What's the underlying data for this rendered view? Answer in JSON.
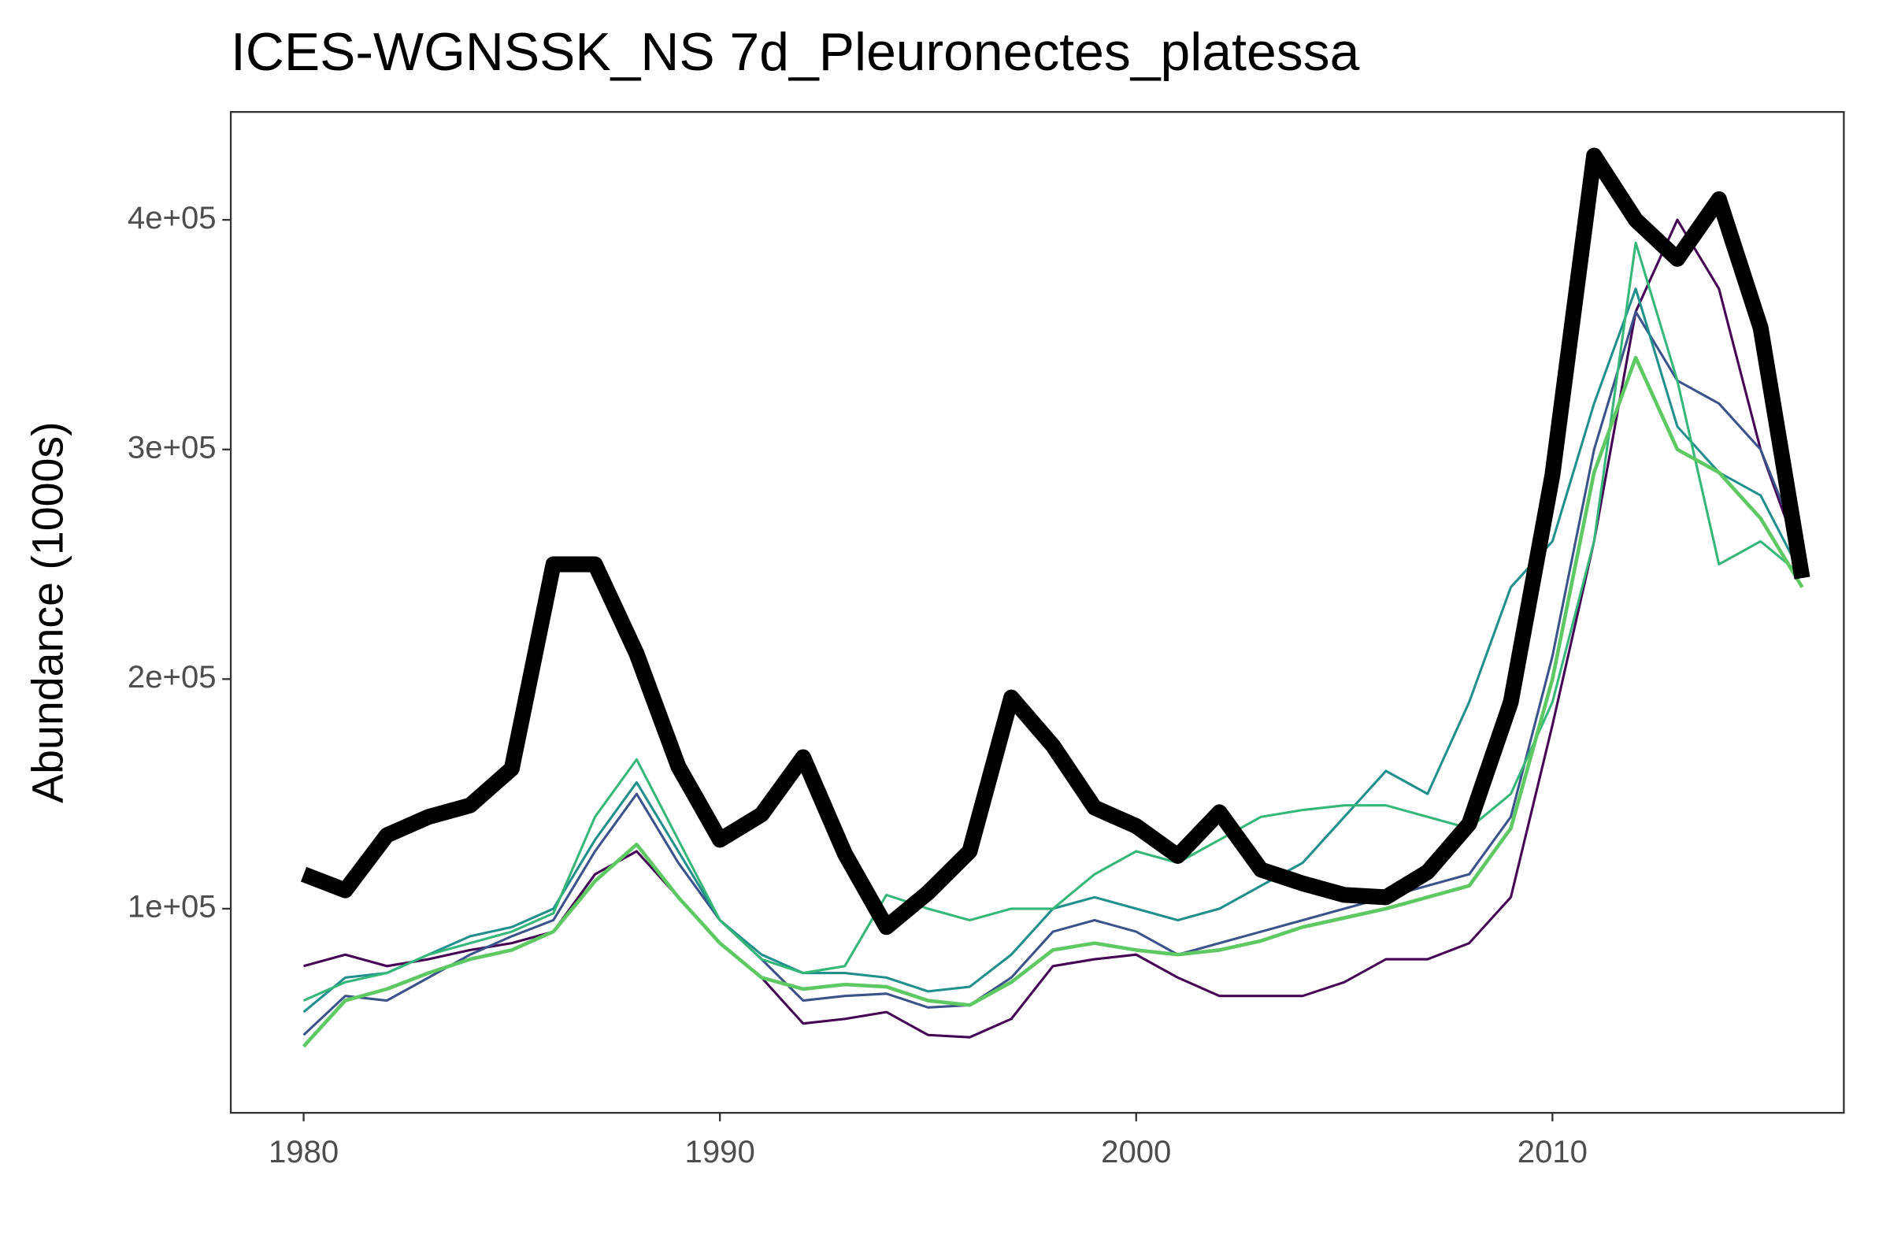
{
  "chart_data": {
    "type": "line",
    "title": "ICES-WGNSSK_NS 7d_Pleuronectes_platessa",
    "y_label": "Abundance (1000s)",
    "x": [
      1980,
      1981,
      1982,
      1983,
      1984,
      1985,
      1986,
      1987,
      1988,
      1989,
      1990,
      1991,
      1992,
      1993,
      1994,
      1995,
      1996,
      1997,
      1998,
      1999,
      2000,
      2001,
      2002,
      2003,
      2004,
      2005,
      2006,
      2007,
      2008,
      2009,
      2010,
      2011,
      2012,
      2013,
      2014,
      2015,
      2016
    ],
    "xlim": [
      1978.25,
      2017
    ],
    "xticks": [
      1980,
      1990,
      2000,
      2010
    ],
    "ylim": [
      11100,
      447000
    ],
    "yticks": [
      {
        "value": 100000,
        "label": "1e+05"
      },
      {
        "value": 200000,
        "label": "2e+05"
      },
      {
        "value": 300000,
        "label": "3e+05"
      },
      {
        "value": 400000,
        "label": "4e+05"
      }
    ],
    "grid": false,
    "series": [
      {
        "color": "#440154",
        "width": 2,
        "values": [
          75000,
          80000,
          75000,
          78000,
          82000,
          85000,
          90000,
          115000,
          125000,
          105000,
          85000,
          70000,
          50000,
          52000,
          55000,
          45000,
          44000,
          52000,
          75000,
          78000,
          80000,
          70000,
          62000,
          62000,
          62000,
          68000,
          78000,
          78000,
          85000,
          105000,
          180000,
          260000,
          360000,
          400000,
          370000,
          300000,
          250000
        ]
      },
      {
        "color": "#3b528b",
        "width": 2,
        "values": [
          45000,
          62000,
          60000,
          70000,
          80000,
          88000,
          95000,
          125000,
          150000,
          120000,
          95000,
          78000,
          60000,
          62000,
          63000,
          57000,
          58000,
          70000,
          90000,
          95000,
          90000,
          80000,
          85000,
          90000,
          95000,
          100000,
          105000,
          110000,
          115000,
          140000,
          210000,
          300000,
          360000,
          330000,
          320000,
          300000,
          255000
        ]
      },
      {
        "color": "#21908c",
        "width": 2,
        "values": [
          55000,
          70000,
          72000,
          80000,
          88000,
          92000,
          100000,
          130000,
          155000,
          125000,
          95000,
          80000,
          72000,
          72000,
          70000,
          64000,
          66000,
          80000,
          100000,
          105000,
          100000,
          95000,
          100000,
          110000,
          120000,
          140000,
          160000,
          150000,
          190000,
          240000,
          260000,
          320000,
          370000,
          310000,
          290000,
          280000,
          245000
        ]
      },
      {
        "color": "#35b779",
        "width": 2,
        "values": [
          60000,
          68000,
          72000,
          80000,
          85000,
          90000,
          98000,
          140000,
          165000,
          130000,
          95000,
          78000,
          72000,
          75000,
          106000,
          100000,
          95000,
          100000,
          100000,
          115000,
          125000,
          120000,
          130000,
          140000,
          143000,
          145000,
          145000,
          140000,
          135000,
          150000,
          190000,
          260000,
          390000,
          330000,
          250000,
          260000,
          245000
        ]
      },
      {
        "color": "#5ec962",
        "width": 3,
        "values": [
          40000,
          60000,
          65000,
          72000,
          78000,
          82000,
          90000,
          112000,
          128000,
          105000,
          85000,
          70000,
          65000,
          67000,
          66000,
          60000,
          58000,
          68000,
          82000,
          85000,
          82000,
          80000,
          82000,
          86000,
          92000,
          96000,
          100000,
          105000,
          110000,
          135000,
          200000,
          290000,
          340000,
          300000,
          290000,
          270000,
          240000
        ]
      },
      {
        "color": "#000000",
        "width": 13,
        "values": [
          115000,
          108000,
          132000,
          140000,
          145000,
          161000,
          250000,
          250000,
          211000,
          162000,
          130000,
          141000,
          166000,
          124000,
          92000,
          107000,
          125000,
          192000,
          171000,
          144000,
          136000,
          123000,
          142000,
          117000,
          111000,
          106000,
          105000,
          116000,
          137000,
          190000,
          289000,
          428000,
          400000,
          383000,
          409000,
          353000,
          244000
        ]
      }
    ]
  }
}
